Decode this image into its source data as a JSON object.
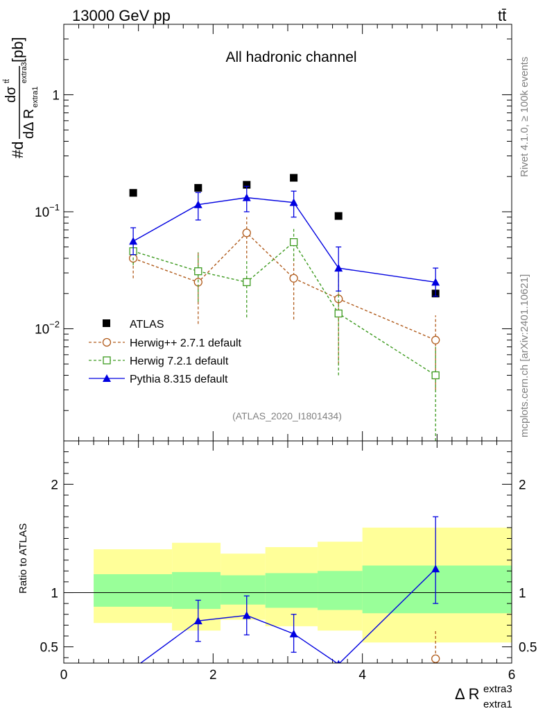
{
  "header": {
    "energy_label": "13000 GeV pp",
    "process_label": "tt̄",
    "channel_label": "All hadronic channel",
    "analysis_id": "(ATLAS_2020_I1801434)",
    "side_label_rivet": "Rivet 4.1.0, ≥ 100k events",
    "side_label_site": "mcplots.cern.ch [arXiv:2401.10621]"
  },
  "colors": {
    "atlas": "#000000",
    "herwigpp": "#b05a1a",
    "herwig7": "#3c9a1e",
    "pythia": "#0000e0",
    "band_inner": "#99ff99",
    "band_outer": "#ffff99"
  },
  "chart_data": [
    {
      "type": "scatter",
      "panel": "main",
      "title": "All hadronic channel",
      "xlabel": "Δ R^extra3_extra1",
      "ylabel": "#d dσ^tt̄ / dΔ R^extra3_extra1 [pb]",
      "yscale": "log",
      "xlim": [
        0,
        6
      ],
      "ylim": [
        0.0011,
        4.0
      ],
      "y_tick_labels": [
        {
          "value": 0.01,
          "base": "10",
          "exp": "−2"
        },
        {
          "value": 0.1,
          "base": "10",
          "exp": "−1"
        },
        {
          "value": 1,
          "base": "1",
          "exp": ""
        }
      ],
      "legend": {
        "position": "bottom-left",
        "entries": [
          {
            "key": "atlas",
            "label": "ATLAS"
          },
          {
            "key": "herwigpp",
            "label": "Herwig++ 2.7.1 default"
          },
          {
            "key": "herwig7",
            "label": "Herwig 7.2.1 default"
          },
          {
            "key": "pythia",
            "label": "Pythia 8.315 default"
          }
        ]
      },
      "series": [
        {
          "key": "atlas",
          "name": "ATLAS",
          "marker": "square",
          "x": [
            0.93,
            1.8,
            2.45,
            3.08,
            3.68,
            4.98
          ],
          "y": [
            0.145,
            0.16,
            0.17,
            0.195,
            0.092,
            0.02
          ]
        },
        {
          "key": "herwigpp",
          "name": "Herwig++ 2.7.1 default",
          "marker": "open-circle",
          "line": "dashed",
          "x": [
            0.93,
            1.8,
            2.45,
            3.08,
            3.68,
            4.98
          ],
          "y": [
            0.04,
            0.025,
            0.066,
            0.027,
            0.018,
            0.008
          ],
          "err_lo": [
            0.027,
            0.011,
            0.04,
            0.012,
            0.005,
            0.003
          ],
          "err_hi": [
            0.055,
            0.045,
            0.09,
            0.042,
            0.035,
            0.013
          ]
        },
        {
          "key": "herwig7",
          "name": "Herwig 7.2.1 default",
          "marker": "open-square",
          "line": "dashed",
          "x": [
            0.93,
            1.8,
            2.45,
            3.08,
            3.68,
            4.98
          ],
          "y": [
            0.046,
            0.031,
            0.025,
            0.055,
            0.0135,
            0.004
          ],
          "err_lo": [
            0.035,
            0.017,
            0.0125,
            0.038,
            0.004,
            0.001
          ],
          "err_hi": [
            0.057,
            0.045,
            0.038,
            0.072,
            0.03,
            0.007
          ]
        },
        {
          "key": "pythia",
          "name": "Pythia 8.315 default",
          "marker": "filled-triangle",
          "line": "solid",
          "x": [
            0.93,
            1.8,
            2.45,
            3.08,
            3.68,
            4.98
          ],
          "y": [
            0.056,
            0.115,
            0.132,
            0.12,
            0.033,
            0.025
          ],
          "err_lo": [
            0.043,
            0.085,
            0.1,
            0.09,
            0.021,
            0.019
          ],
          "err_hi": [
            0.073,
            0.146,
            0.165,
            0.15,
            0.05,
            0.033
          ]
        }
      ]
    },
    {
      "type": "line",
      "panel": "ratio",
      "ylabel": "Ratio to ATLAS",
      "xlabel": "Δ R^extra3_extra1",
      "xlim": [
        0,
        6
      ],
      "ylim": [
        0.35,
        2.4
      ],
      "x_ticks": [
        0,
        2,
        4,
        6
      ],
      "y_ticks": [
        0.5,
        1,
        2
      ],
      "bands": {
        "bin_edges": [
          0.4,
          1.45,
          2.1,
          2.7,
          3.4,
          4.0,
          6.0
        ],
        "inner_low": [
          0.87,
          0.85,
          0.89,
          0.86,
          0.84,
          0.81
        ],
        "inner_high": [
          1.17,
          1.19,
          1.16,
          1.18,
          1.2,
          1.25
        ],
        "outer_low": [
          0.72,
          0.65,
          0.75,
          0.69,
          0.65,
          0.54
        ],
        "outer_high": [
          1.4,
          1.46,
          1.36,
          1.42,
          1.47,
          1.6
        ]
      },
      "series": [
        {
          "key": "pythia",
          "name": "Pythia 8.315 default",
          "x": [
            0.93,
            1.8,
            2.45,
            3.08,
            3.68,
            4.98
          ],
          "y": [
            0.3,
            0.74,
            0.79,
            0.62,
            0.34,
            1.22
          ],
          "err_lo": [
            null,
            0.55,
            0.61,
            0.45,
            null,
            0.9
          ],
          "err_hi": [
            null,
            0.93,
            0.97,
            0.8,
            null,
            1.7
          ]
        },
        {
          "key": "herwigpp",
          "name": "Herwig++ 2.7.1 default",
          "x": [
            4.98
          ],
          "y": [
            0.39
          ],
          "err_lo": [
            0.35
          ],
          "err_hi": [
            0.66
          ]
        }
      ]
    }
  ]
}
